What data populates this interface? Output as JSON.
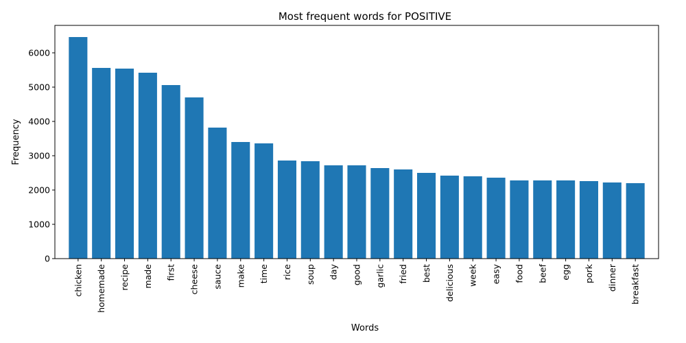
{
  "chart_data": {
    "type": "bar",
    "title": "Most frequent words for POSITIVE",
    "xlabel": "Words",
    "ylabel": "Frequency",
    "ylim": [
      0,
      6800
    ],
    "yticks": [
      0,
      1000,
      2000,
      3000,
      4000,
      5000,
      6000
    ],
    "grid": false,
    "bar_color": "#1f77b4",
    "categories": [
      "chicken",
      "homemade",
      "recipe",
      "made",
      "first",
      "cheese",
      "sauce",
      "make",
      "time",
      "rice",
      "soup",
      "day",
      "good",
      "garlic",
      "fried",
      "best",
      "delicious",
      "week",
      "easy",
      "food",
      "beef",
      "egg",
      "pork",
      "dinner",
      "breakfast"
    ],
    "values": [
      6460,
      5560,
      5540,
      5420,
      5060,
      4700,
      3820,
      3400,
      3360,
      2860,
      2840,
      2720,
      2720,
      2640,
      2600,
      2500,
      2420,
      2400,
      2360,
      2280,
      2280,
      2280,
      2260,
      2220,
      2200
    ]
  }
}
